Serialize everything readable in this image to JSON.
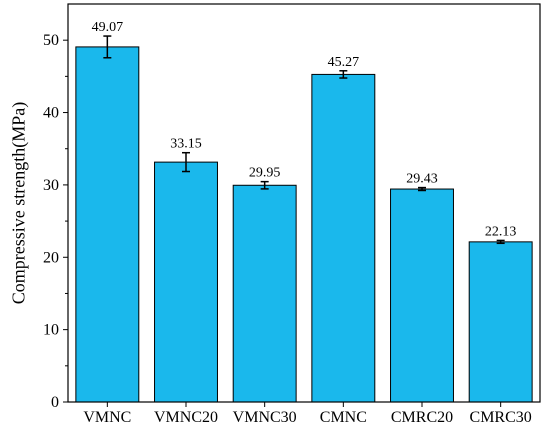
{
  "chart_data": {
    "type": "bar",
    "title": "",
    "xlabel": "",
    "ylabel": "Compressive strength(MPa)",
    "ylim": [
      0,
      55
    ],
    "yticks": [
      0,
      10,
      20,
      30,
      40,
      50
    ],
    "grid": false,
    "categories": [
      "VMNC",
      "VMNC20",
      "VMNC30",
      "CMNC",
      "CMRC20",
      "CMRC30"
    ],
    "values": [
      49.07,
      33.15,
      29.95,
      45.27,
      29.43,
      22.13
    ],
    "value_labels": [
      "49.07",
      "33.15",
      "29.95",
      "45.27",
      "29.43",
      "22.13"
    ],
    "error": [
      1.5,
      1.3,
      0.5,
      0.5,
      0.2,
      0.2
    ],
    "bar_color": "#1ab8ec",
    "edge_color": "#000000"
  }
}
